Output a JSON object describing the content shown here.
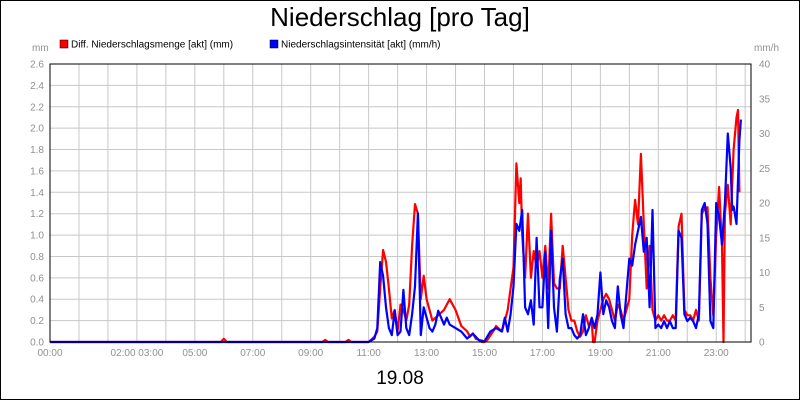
{
  "chart_data": {
    "type": "line",
    "title": "Niederschlag [pro Tag]",
    "date_label": "19.08",
    "y_left_unit": "mm",
    "y_right_unit": "mm/h",
    "ylim_left": [
      0,
      2.6
    ],
    "ylim_right": [
      0,
      40
    ],
    "y_left_ticks": [
      "0.0",
      "0.2",
      "0.4",
      "0.6",
      "0.8",
      "1.0",
      "1.2",
      "1.4",
      "1.6",
      "1.8",
      "2.0",
      "2.2",
      "2.4",
      "2.6"
    ],
    "y_right_ticks": [
      "0",
      "5",
      "10",
      "15",
      "20",
      "25",
      "30",
      "35",
      "40"
    ],
    "x_ticks": [
      {
        "h": 0,
        "label": "00:00"
      },
      {
        "h": 3,
        "label": "02:00 03:00"
      },
      {
        "h": 5,
        "label": "05:00"
      },
      {
        "h": 7,
        "label": "07:00"
      },
      {
        "h": 9,
        "label": "09:00"
      },
      {
        "h": 11,
        "label": "11:00"
      },
      {
        "h": 13,
        "label": "13:00"
      },
      {
        "h": 15,
        "label": "15:00"
      },
      {
        "h": 17,
        "label": "17:00"
      },
      {
        "h": 19,
        "label": "19:00"
      },
      {
        "h": 21,
        "label": "21:00"
      },
      {
        "h": 23,
        "label": "23:00"
      }
    ],
    "xlim": [
      0,
      24.2
    ],
    "grid": true,
    "legend": "top-left",
    "series": [
      {
        "name": "Diff. Niederschlagsmenge [akt] (mm)",
        "color": "#ff0000",
        "axis": "left",
        "points": [
          [
            0,
            0
          ],
          [
            5.9,
            0
          ],
          [
            6.0,
            0.03
          ],
          [
            6.1,
            0
          ],
          [
            9.4,
            0
          ],
          [
            9.5,
            0.02
          ],
          [
            9.6,
            0
          ],
          [
            10.2,
            0
          ],
          [
            10.3,
            0.02
          ],
          [
            10.4,
            0
          ],
          [
            11.0,
            0
          ],
          [
            11.2,
            0.05
          ],
          [
            11.3,
            0.1
          ],
          [
            11.4,
            0.5
          ],
          [
            11.5,
            0.86
          ],
          [
            11.6,
            0.75
          ],
          [
            11.7,
            0.5
          ],
          [
            11.8,
            0.22
          ],
          [
            11.9,
            0.3
          ],
          [
            12.0,
            0.1
          ],
          [
            12.1,
            0.35
          ],
          [
            12.2,
            0.3
          ],
          [
            12.3,
            0.2
          ],
          [
            12.4,
            0.35
          ],
          [
            12.5,
            0.9
          ],
          [
            12.6,
            1.29
          ],
          [
            12.7,
            1.2
          ],
          [
            12.8,
            0.4
          ],
          [
            12.9,
            0.62
          ],
          [
            13.0,
            0.4
          ],
          [
            13.2,
            0.2
          ],
          [
            13.4,
            0.25
          ],
          [
            13.6,
            0.3
          ],
          [
            13.8,
            0.4
          ],
          [
            14.0,
            0.3
          ],
          [
            14.2,
            0.15
          ],
          [
            14.4,
            0.1
          ],
          [
            14.5,
            0.05
          ],
          [
            14.6,
            0.08
          ],
          [
            14.7,
            0.03
          ],
          [
            14.8,
            0.02
          ],
          [
            14.9,
            0.0
          ],
          [
            15.0,
            0.0
          ],
          [
            15.1,
            0.02
          ],
          [
            15.3,
            0.1
          ],
          [
            15.4,
            0.15
          ],
          [
            15.6,
            0.1
          ],
          [
            15.7,
            0.2
          ],
          [
            15.8,
            0.3
          ],
          [
            15.9,
            0.5
          ],
          [
            16.0,
            0.7
          ],
          [
            16.1,
            1.67
          ],
          [
            16.2,
            1.3
          ],
          [
            16.25,
            1.53
          ],
          [
            16.3,
            1.0
          ],
          [
            16.4,
            0.6
          ],
          [
            16.5,
            1.2
          ],
          [
            16.6,
            0.6
          ],
          [
            16.7,
            0.85
          ],
          [
            16.8,
            0.7
          ],
          [
            16.9,
            0.85
          ],
          [
            17.0,
            0.6
          ],
          [
            17.1,
            0.9
          ],
          [
            17.2,
            0.5
          ],
          [
            17.3,
            1.2
          ],
          [
            17.4,
            0.55
          ],
          [
            17.5,
            0.5
          ],
          [
            17.6,
            0.5
          ],
          [
            17.7,
            0.9
          ],
          [
            17.8,
            0.6
          ],
          [
            17.9,
            0.3
          ],
          [
            18.0,
            0.2
          ],
          [
            18.1,
            0.2
          ],
          [
            18.2,
            0.1
          ],
          [
            18.3,
            0.05
          ],
          [
            18.4,
            0.1
          ],
          [
            18.5,
            0.25
          ],
          [
            18.6,
            0.15
          ],
          [
            18.7,
            0.2
          ],
          [
            18.75,
            0.0
          ],
          [
            18.8,
            0.0
          ],
          [
            18.9,
            0.2
          ],
          [
            19.0,
            0.3
          ],
          [
            19.1,
            0.4
          ],
          [
            19.2,
            0.45
          ],
          [
            19.3,
            0.4
          ],
          [
            19.4,
            0.3
          ],
          [
            19.5,
            0.2
          ],
          [
            19.6,
            0.35
          ],
          [
            19.7,
            0.3
          ],
          [
            19.8,
            0.2
          ],
          [
            20.0,
            0.4
          ],
          [
            20.1,
            1.0
          ],
          [
            20.2,
            1.33
          ],
          [
            20.3,
            1.1
          ],
          [
            20.4,
            1.76
          ],
          [
            20.5,
            1.1
          ],
          [
            20.6,
            0.5
          ],
          [
            20.7,
            0.9
          ],
          [
            20.8,
            0.3
          ],
          [
            20.9,
            0.2
          ],
          [
            21.0,
            0.25
          ],
          [
            21.1,
            0.2
          ],
          [
            21.2,
            0.25
          ],
          [
            21.3,
            0.2
          ],
          [
            21.4,
            0.2
          ],
          [
            21.5,
            0.25
          ],
          [
            21.6,
            0.2
          ],
          [
            21.7,
            1.08
          ],
          [
            21.8,
            1.2
          ],
          [
            21.9,
            0.3
          ],
          [
            22.0,
            0.25
          ],
          [
            22.1,
            0.25
          ],
          [
            22.2,
            0.2
          ],
          [
            22.3,
            0.3
          ],
          [
            22.4,
            0.2
          ],
          [
            22.5,
            1.2
          ],
          [
            22.6,
            1.25
          ],
          [
            22.7,
            1.26
          ],
          [
            22.8,
            0.6
          ],
          [
            22.9,
            0.25
          ],
          [
            23.0,
            1.0
          ],
          [
            23.1,
            1.45
          ],
          [
            23.2,
            0.9
          ],
          [
            23.25,
            0.0
          ],
          [
            23.3,
            1.2
          ],
          [
            23.4,
            1.47
          ],
          [
            23.5,
            1.1
          ],
          [
            23.6,
            1.8
          ],
          [
            23.7,
            2.1
          ],
          [
            23.75,
            2.17
          ],
          [
            23.8,
            1.4
          ]
        ]
      },
      {
        "name": "Niederschlagsintensität [akt] (mm/h)",
        "color": "#0000ff",
        "axis": "right",
        "points": [
          [
            0,
            0
          ],
          [
            11.0,
            0
          ],
          [
            11.2,
            0.5
          ],
          [
            11.3,
            2
          ],
          [
            11.4,
            11.5
          ],
          [
            11.5,
            9.5
          ],
          [
            11.6,
            5
          ],
          [
            11.7,
            2
          ],
          [
            11.8,
            1
          ],
          [
            11.9,
            4.5
          ],
          [
            12.0,
            1
          ],
          [
            12.1,
            1.5
          ],
          [
            12.2,
            7.5
          ],
          [
            12.3,
            2
          ],
          [
            12.4,
            1
          ],
          [
            12.5,
            4
          ],
          [
            12.6,
            8
          ],
          [
            12.7,
            18.5
          ],
          [
            12.8,
            1
          ],
          [
            12.9,
            5
          ],
          [
            13.0,
            3.5
          ],
          [
            13.1,
            2
          ],
          [
            13.2,
            1.5
          ],
          [
            13.3,
            2.5
          ],
          [
            13.4,
            4.5
          ],
          [
            13.5,
            3.5
          ],
          [
            13.6,
            2.5
          ],
          [
            13.7,
            3.5
          ],
          [
            13.8,
            2.5
          ],
          [
            14.0,
            2
          ],
          [
            14.2,
            1.5
          ],
          [
            14.4,
            0.5
          ],
          [
            14.6,
            1.2
          ],
          [
            14.8,
            0.3
          ],
          [
            15.0,
            0.1
          ],
          [
            15.2,
            1.5
          ],
          [
            15.4,
            2
          ],
          [
            15.6,
            1.5
          ],
          [
            15.7,
            3.5
          ],
          [
            15.8,
            1.5
          ],
          [
            15.9,
            4
          ],
          [
            16.0,
            8
          ],
          [
            16.1,
            17
          ],
          [
            16.2,
            16
          ],
          [
            16.3,
            19
          ],
          [
            16.4,
            5
          ],
          [
            16.5,
            4
          ],
          [
            16.6,
            6
          ],
          [
            16.7,
            2.5
          ],
          [
            16.8,
            15
          ],
          [
            16.9,
            5
          ],
          [
            17.0,
            5
          ],
          [
            17.1,
            13
          ],
          [
            17.2,
            2
          ],
          [
            17.3,
            16
          ],
          [
            17.4,
            5
          ],
          [
            17.5,
            1.5
          ],
          [
            17.6,
            9
          ],
          [
            17.7,
            12
          ],
          [
            17.8,
            4
          ],
          [
            17.9,
            2
          ],
          [
            18.0,
            2
          ],
          [
            18.1,
            1
          ],
          [
            18.2,
            0.5
          ],
          [
            18.3,
            1
          ],
          [
            18.4,
            4
          ],
          [
            18.5,
            1
          ],
          [
            18.6,
            2
          ],
          [
            18.7,
            3.5
          ],
          [
            18.8,
            2
          ],
          [
            18.9,
            4
          ],
          [
            19.0,
            10
          ],
          [
            19.1,
            4
          ],
          [
            19.2,
            6
          ],
          [
            19.3,
            5
          ],
          [
            19.4,
            3
          ],
          [
            19.5,
            2
          ],
          [
            19.6,
            8
          ],
          [
            19.7,
            4
          ],
          [
            19.8,
            2
          ],
          [
            20.0,
            12
          ],
          [
            20.1,
            11
          ],
          [
            20.2,
            14
          ],
          [
            20.3,
            16
          ],
          [
            20.4,
            18
          ],
          [
            20.5,
            13
          ],
          [
            20.6,
            15
          ],
          [
            20.7,
            5
          ],
          [
            20.8,
            19
          ],
          [
            20.9,
            2
          ],
          [
            21.0,
            2.5
          ],
          [
            21.1,
            2
          ],
          [
            21.2,
            3
          ],
          [
            21.3,
            2
          ],
          [
            21.4,
            3
          ],
          [
            21.5,
            2
          ],
          [
            21.6,
            2
          ],
          [
            21.7,
            16
          ],
          [
            21.8,
            15
          ],
          [
            21.9,
            4
          ],
          [
            22.0,
            3
          ],
          [
            22.1,
            3.5
          ],
          [
            22.2,
            3
          ],
          [
            22.3,
            2
          ],
          [
            22.4,
            4
          ],
          [
            22.5,
            19
          ],
          [
            22.6,
            20
          ],
          [
            22.7,
            17
          ],
          [
            22.8,
            3
          ],
          [
            22.9,
            2
          ],
          [
            23.0,
            20
          ],
          [
            23.1,
            18
          ],
          [
            23.2,
            14
          ],
          [
            23.3,
            20
          ],
          [
            23.4,
            30
          ],
          [
            23.5,
            25
          ],
          [
            23.55,
            19
          ],
          [
            23.6,
            19.5
          ],
          [
            23.7,
            17
          ],
          [
            23.8,
            29
          ],
          [
            23.85,
            32
          ]
        ]
      }
    ]
  }
}
